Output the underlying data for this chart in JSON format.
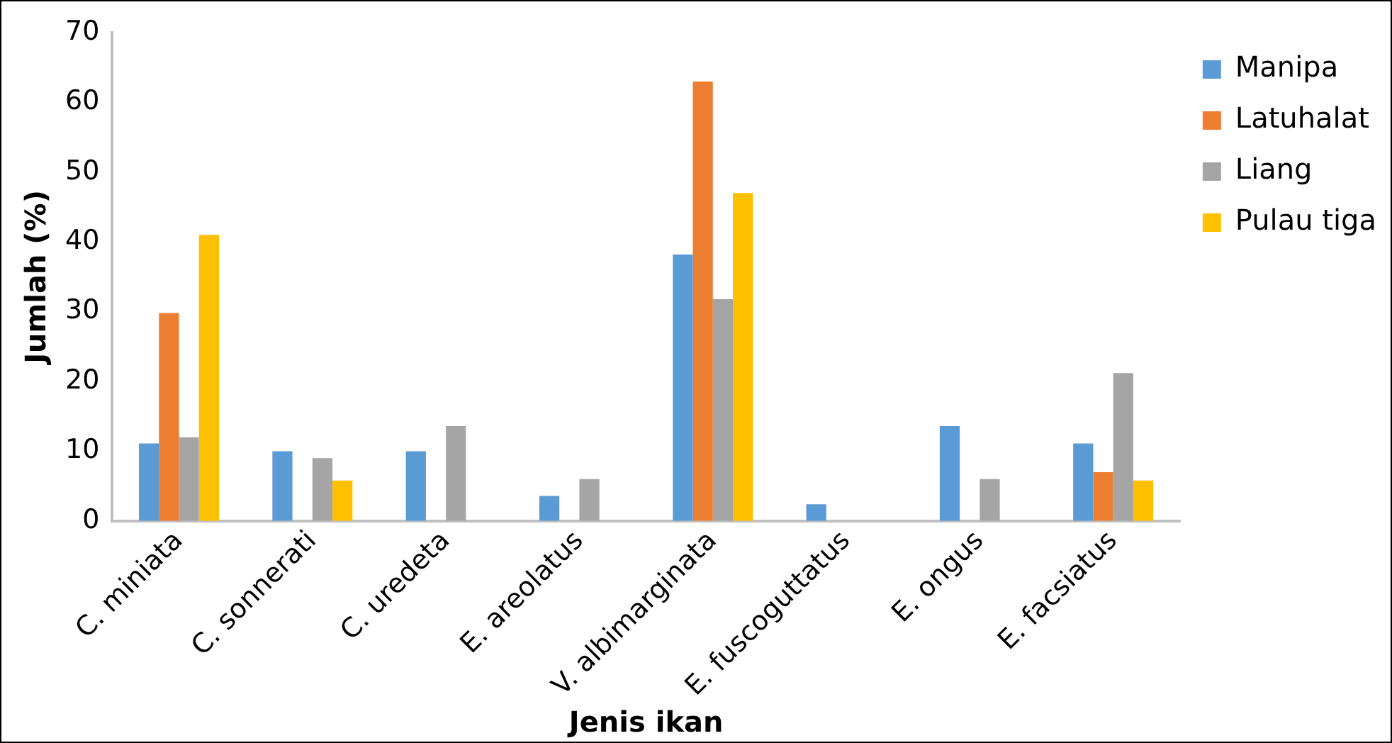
{
  "chart_data": {
    "type": "bar",
    "xlabel": "Jenis ikan",
    "ylabel": "Jumlah (%)",
    "categories": [
      "C. miniata",
      "C. sonnerati",
      "C. uredeta",
      "E. areolatus",
      "V. albimarginata",
      "E. fuscoguttatus",
      "E. ongus",
      "E. facsiatus"
    ],
    "series": [
      {
        "name": "Manipa",
        "color": "#5b9bd5",
        "values": [
          11.1,
          10,
          10,
          3.6,
          38.2,
          2.4,
          13.6,
          11.1
        ]
      },
      {
        "name": "Latuhalat",
        "color": "#ed7d31",
        "values": [
          29.8,
          0,
          0,
          0,
          63,
          0,
          0,
          7
        ]
      },
      {
        "name": "Liang",
        "color": "#a5a5a5",
        "values": [
          12,
          9,
          13.6,
          6,
          31.8,
          0,
          6,
          21.2
        ]
      },
      {
        "name": "Pulau tiga",
        "color": "#ffc000",
        "values": [
          41,
          5.8,
          0,
          0,
          47,
          0,
          0,
          5.8
        ]
      }
    ],
    "ylim": [
      0,
      70
    ],
    "yticks": [
      0,
      10,
      20,
      30,
      40,
      50,
      60,
      70
    ],
    "grid": false,
    "legend": "right"
  }
}
